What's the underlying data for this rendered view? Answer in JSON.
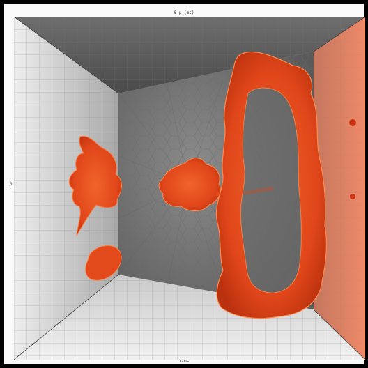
{
  "figure": {
    "top_label": "0 μ (ms)",
    "bottom_label": "TIME",
    "left_label": "0"
  },
  "colors": {
    "frame": "#fafafa",
    "back_wall": "#a9a9a9",
    "plasma": "#e8501f",
    "plasma_dark": "#b8320e",
    "right_wall_glow": "#e9856a"
  },
  "scene": {
    "description_icon": "3d-box-chamber-icon"
  }
}
